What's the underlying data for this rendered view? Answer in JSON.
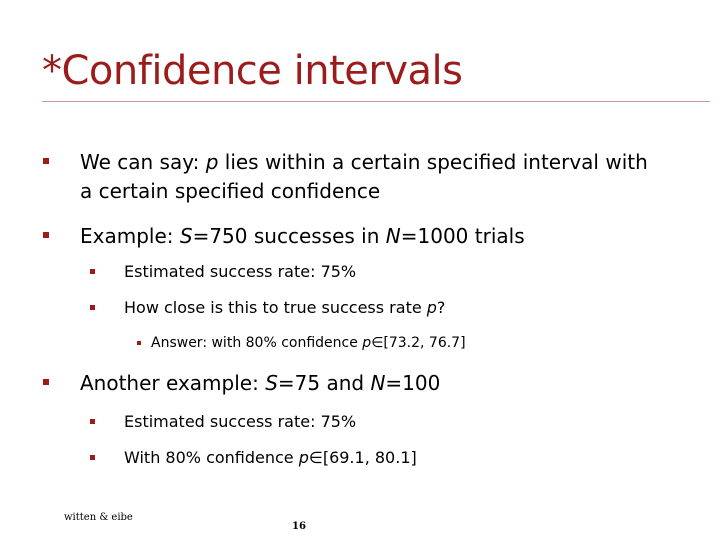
{
  "slide": {
    "title": "*Confidence intervals",
    "bullets": [
      {
        "line1": "We can say: ",
        "var": "p",
        "line1_rest": " lies within a certain specified interval with",
        "line2": "a certain specified confidence"
      },
      {
        "prefix": "Example: ",
        "var1": "S",
        "mid": "=750 successes in ",
        "var2": "N",
        "suffix": "=1000 trials",
        "sub": [
          {
            "text": "Estimated success rate: 75%"
          },
          {
            "prefix": "How close is this to true success rate ",
            "var": "p",
            "suffix": "?",
            "sub": [
              {
                "prefix": "Answer: with 80% confidence ",
                "var": "p",
                "suffix": "∈[73.2, 76.7]"
              }
            ]
          }
        ]
      },
      {
        "prefix": "Another example: ",
        "var1": "S",
        "mid": "=75 and ",
        "var2": "N",
        "suffix": "=100",
        "sub": [
          {
            "text": "Estimated success rate: 75%"
          },
          {
            "prefix": "With 80% confidence ",
            "var": "p",
            "suffix": "∈[69.1, 80.1]"
          }
        ]
      }
    ]
  },
  "footer": {
    "author": "witten & eibe",
    "page_number": "16"
  },
  "colors": {
    "title": "#9c1c1c",
    "bullet": "#9c1c1c",
    "rule": "#c99a9a",
    "text": "#000000"
  }
}
